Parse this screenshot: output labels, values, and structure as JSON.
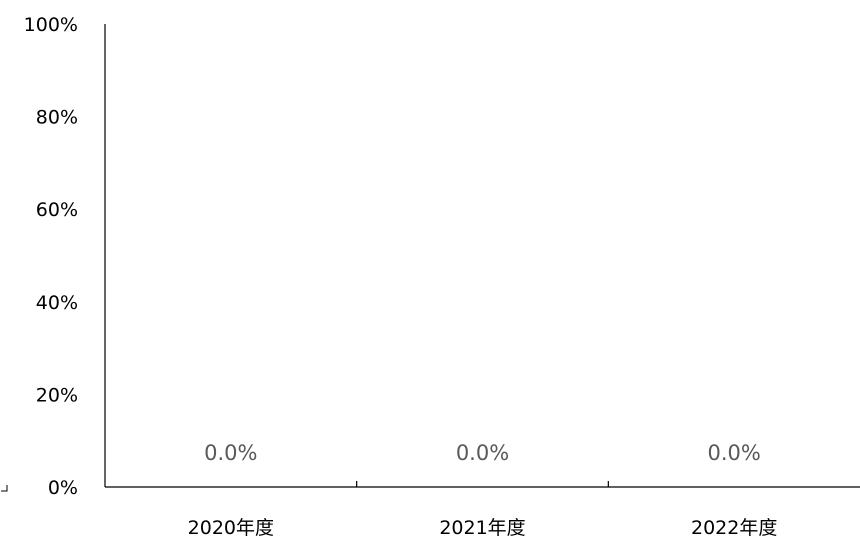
{
  "chart_data": {
    "type": "bar",
    "categories": [
      "2020年度",
      "2021年度",
      "2022年度"
    ],
    "values": [
      0.0,
      0.0,
      0.0
    ],
    "data_labels": [
      "0.0%",
      "0.0%",
      "0.0%"
    ],
    "y_ticks": [
      "0%",
      "20%",
      "40%",
      "60%",
      "80%",
      "100%"
    ],
    "ylim": [
      0,
      100
    ],
    "title": "",
    "xlabel": "",
    "ylabel": "",
    "grid": false,
    "legend": "none",
    "colors": {
      "axis": "#000000",
      "tick_text": "#000000",
      "data_label_text": "#595959"
    }
  }
}
